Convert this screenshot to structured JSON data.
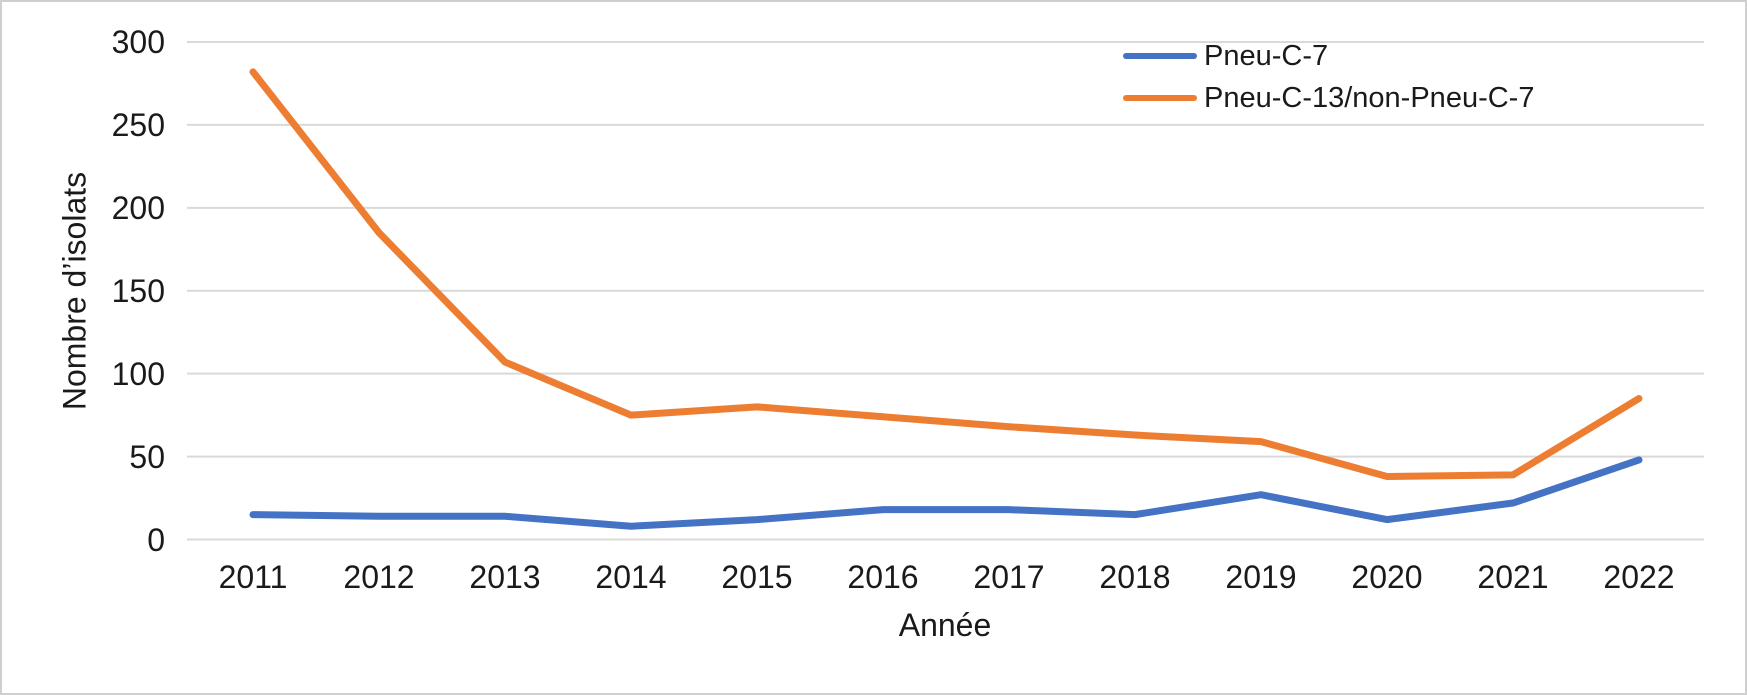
{
  "figure": {
    "background_color": "#ffffff",
    "border_color": "#cfcfcf",
    "gridline_color": "#d9d9d9",
    "text_color": "#1a1a1a"
  },
  "chart_data": {
    "type": "line",
    "title": "",
    "xlabel": "Année",
    "ylabel": "Nombre d’isolats",
    "categories": [
      "2011",
      "2012",
      "2013",
      "2014",
      "2015",
      "2016",
      "2017",
      "2018",
      "2019",
      "2020",
      "2021",
      "2022"
    ],
    "yticks": [
      0,
      50,
      100,
      150,
      200,
      250,
      300
    ],
    "ylim": [
      0,
      300
    ],
    "grid": "horizontal",
    "legend_position": "top-right",
    "series": [
      {
        "name": "Pneu-C-7",
        "color": "#4472C4",
        "values": [
          15,
          14,
          14,
          8,
          12,
          18,
          18,
          15,
          27,
          12,
          22,
          48
        ]
      },
      {
        "name": "Pneu-C-13/non-Pneu-C-7",
        "color": "#ED7D31",
        "values": [
          282,
          185,
          107,
          75,
          80,
          74,
          68,
          63,
          59,
          38,
          39,
          85
        ]
      }
    ]
  }
}
